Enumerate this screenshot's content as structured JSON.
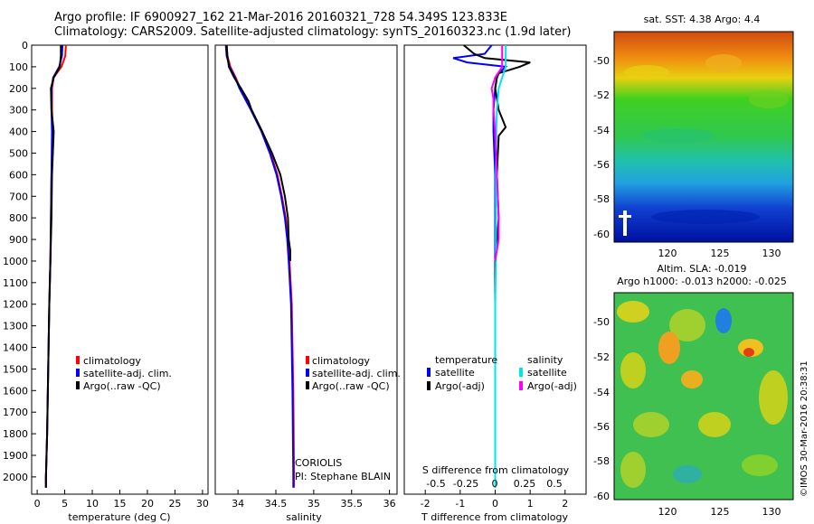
{
  "header": {
    "line1": "Argo profile: IF 6900927_162 21-Mar-2016 20160321_728 54.349S 123.833E",
    "line2": "Climatology: CARS2009. Satellite-adjusted climatology: synTS_20160323.nc (1.9d later)"
  },
  "colors": {
    "climatology": "#ff0000",
    "satellite": "#0000ff",
    "argo": "#000000",
    "sat_salinity": "#00e5e5",
    "argo_salinity": "#ff00ff"
  },
  "legend_profile": {
    "climatology": "climatology",
    "satellite": "satellite-adj. clim.",
    "argo": "Argo(..raw -QC)"
  },
  "legend_diff": {
    "temperature_head": "temperature",
    "salinity_head": "salinity",
    "satellite": "satellite",
    "argo": "Argo(-adj)"
  },
  "credit": {
    "line1": "CORIOLIS",
    "line2": "PI: Stephane BLAIN"
  },
  "map_top": {
    "title": "sat. SST: 4.38 Argo: 4.4",
    "y_ticks": [
      "-50",
      "-52",
      "-54",
      "-56",
      "-58",
      "-60"
    ],
    "x_ticks": [
      "120",
      "125",
      "130"
    ]
  },
  "map_bottom": {
    "title1": "Altim. SLA: -0.019",
    "title2": "Argo h1000: -0.013 h2000: -0.025",
    "y_ticks": [
      "-50",
      "-52",
      "-54",
      "-56",
      "-58",
      "-60"
    ],
    "x_ticks": [
      "120",
      "125",
      "130"
    ]
  },
  "watermark": "©IMOS 30-Mar-2016 20:38:31",
  "chart_data": [
    {
      "type": "line",
      "xlabel": "temperature (deg C)",
      "ylabel": "",
      "xlim": [
        -1,
        31
      ],
      "ylim": [
        2080,
        0
      ],
      "x_ticks": [
        0,
        5,
        10,
        15,
        20,
        25,
        30
      ],
      "y_ticks": [
        0,
        100,
        200,
        300,
        400,
        500,
        600,
        700,
        800,
        900,
        1000,
        1100,
        1200,
        1300,
        1400,
        1500,
        1600,
        1700,
        1800,
        1900,
        2000
      ],
      "series": [
        {
          "name": "climatology",
          "depth": [
            0,
            50,
            100,
            150,
            200,
            300,
            400,
            600,
            800,
            1000,
            1200,
            1500,
            1800,
            2000,
            2050
          ],
          "values": [
            5.2,
            5.1,
            4.4,
            3.0,
            2.7,
            2.7,
            2.8,
            2.6,
            2.5,
            2.4,
            2.2,
            2.0,
            1.8,
            1.6,
            1.6
          ]
        },
        {
          "name": "satellite-adj. clim.",
          "depth": [
            0,
            50,
            100,
            150,
            200,
            300,
            400,
            600,
            800,
            1000,
            1200,
            1500,
            1800,
            2000,
            2050
          ],
          "values": [
            4.6,
            4.5,
            4.0,
            2.9,
            2.6,
            2.6,
            2.7,
            2.6,
            2.5,
            2.4,
            2.2,
            2.0,
            1.8,
            1.6,
            1.6
          ]
        },
        {
          "name": "Argo(..raw -QC)",
          "depth": [
            0,
            50,
            100,
            150,
            200,
            300,
            400,
            600,
            800,
            1000,
            1200,
            1500,
            1800,
            2000,
            2050
          ],
          "values": [
            4.3,
            4.3,
            4.1,
            3.0,
            2.5,
            2.6,
            3.0,
            2.7,
            2.6,
            2.4,
            2.2,
            2.0,
            1.8,
            1.6,
            1.6
          ]
        }
      ]
    },
    {
      "type": "line",
      "xlabel": "salinity",
      "ylabel": "",
      "xlim": [
        33.7,
        36.1
      ],
      "ylim": [
        2080,
        0
      ],
      "x_ticks": [
        34,
        34.5,
        35,
        35.5,
        36
      ],
      "series": [
        {
          "name": "climatology",
          "depth": [
            0,
            50,
            100,
            150,
            200,
            300,
            400,
            500,
            600,
            700,
            800,
            900,
            1000,
            1200,
            1400,
            1600,
            2000,
            2050
          ],
          "values": [
            33.85,
            33.86,
            33.9,
            33.97,
            34.03,
            34.18,
            34.32,
            34.43,
            34.52,
            34.58,
            34.63,
            34.66,
            34.68,
            34.71,
            34.72,
            34.73,
            34.74,
            34.74
          ]
        },
        {
          "name": "satellite-adj. clim.",
          "depth": [
            0,
            50,
            100,
            150,
            200,
            300,
            400,
            500,
            600,
            700,
            800,
            900,
            1000,
            1200,
            1400,
            1600,
            2000,
            2050
          ],
          "values": [
            33.84,
            33.85,
            33.89,
            33.96,
            34.02,
            34.17,
            34.31,
            34.42,
            34.51,
            34.57,
            34.62,
            34.65,
            34.67,
            34.7,
            34.71,
            34.72,
            34.73,
            34.73
          ]
        },
        {
          "name": "Argo(..raw -QC)",
          "depth": [
            0,
            50,
            100,
            150,
            200,
            260,
            300,
            400,
            500,
            600,
            700,
            800,
            900,
            950,
            1000
          ],
          "values": [
            33.85,
            33.86,
            33.88,
            33.95,
            34.04,
            34.14,
            34.18,
            34.32,
            34.45,
            34.56,
            34.62,
            34.66,
            34.67,
            34.69,
            34.69
          ]
        }
      ]
    },
    {
      "type": "line",
      "xlabel": "T difference from climatology",
      "x2label": "S difference from climatology",
      "ylabel": "",
      "xlim": [
        -2.6,
        2.6
      ],
      "ylim": [
        2080,
        0
      ],
      "x_ticks": [
        -2,
        -1,
        0,
        1,
        2
      ],
      "x2_ticks": [
        "-0.5",
        "-0.25",
        "0",
        "0.25",
        "0.5"
      ],
      "series": [
        {
          "name": "temperature satellite",
          "depth": [
            0,
            40,
            60,
            80,
            100,
            130,
            150,
            200,
            300,
            400,
            600,
            800,
            1000,
            1200,
            1500,
            1800,
            2000,
            2050
          ],
          "values": [
            -0.1,
            -0.3,
            -1.2,
            -0.8,
            0.3,
            0.1,
            0.05,
            0.0,
            -0.05,
            -0.05,
            0.0,
            0.0,
            0.0,
            0.0,
            0.0,
            0.0,
            0.0,
            0.0
          ]
        },
        {
          "name": "temperature Argo(-adj)",
          "depth": [
            0,
            40,
            60,
            80,
            100,
            130,
            150,
            200,
            300,
            380,
            420,
            600,
            800,
            1000,
            1200,
            1500,
            1800,
            2000
          ],
          "values": [
            -0.9,
            -0.6,
            -0.3,
            1.0,
            0.7,
            0.1,
            0.05,
            0.0,
            0.1,
            0.3,
            0.1,
            0.05,
            0.1,
            0.0,
            0.0,
            0.0,
            0.0,
            0.0
          ]
        },
        {
          "name": "salinity satellite",
          "depth": [
            0,
            100,
            200,
            300,
            400,
            600,
            800,
            1000,
            1200,
            1500,
            1800,
            2000,
            2050
          ],
          "values": [
            0.3,
            0.3,
            0.1,
            0.05,
            0.03,
            0.02,
            0.02,
            0.02,
            0.0,
            0.0,
            0.0,
            0.0,
            0.0
          ]
        },
        {
          "name": "salinity Argo(-adj)",
          "depth": [
            0,
            100,
            150,
            200,
            250,
            300,
            400,
            600,
            800,
            900,
            1000
          ],
          "values": [
            0.2,
            0.2,
            0.0,
            -0.1,
            -0.05,
            -0.05,
            0.0,
            0.05,
            0.1,
            0.1,
            0.0
          ]
        }
      ]
    }
  ]
}
